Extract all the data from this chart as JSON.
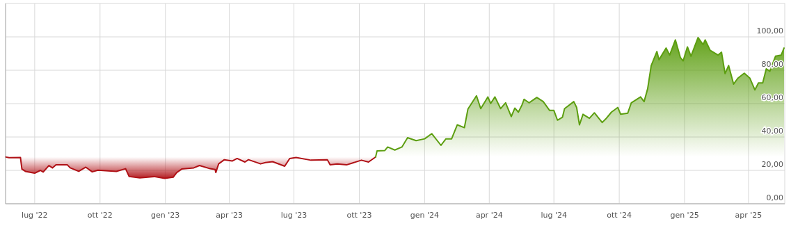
{
  "chart_data": {
    "type": "area",
    "xlim": [
      "2022-05-21",
      "2025-05-22"
    ],
    "ylim": [
      0,
      120
    ],
    "xticks": [
      {
        "value": "2022-07-01",
        "label": "lug '22"
      },
      {
        "value": "2022-10-01",
        "label": "ott '22"
      },
      {
        "value": "2023-01-01",
        "label": "gen '23"
      },
      {
        "value": "2023-04-01",
        "label": "apr '23"
      },
      {
        "value": "2023-07-01",
        "label": "lug '23"
      },
      {
        "value": "2023-10-01",
        "label": "ott '23"
      },
      {
        "value": "2024-01-01",
        "label": "gen '24"
      },
      {
        "value": "2024-04-01",
        "label": "apr '24"
      },
      {
        "value": "2024-07-01",
        "label": "lug '24"
      },
      {
        "value": "2024-10-01",
        "label": "ott '24"
      },
      {
        "value": "2025-01-01",
        "label": "gen '25"
      },
      {
        "value": "2025-04-01",
        "label": "apr '25"
      }
    ],
    "yticks": [
      {
        "value": 0,
        "label": "0,00"
      },
      {
        "value": 20,
        "label": "20,00"
      },
      {
        "value": 40,
        "label": "40,00"
      },
      {
        "value": 60,
        "label": "60,00"
      },
      {
        "value": 80,
        "label": "80,00"
      },
      {
        "value": 100,
        "label": "100,00"
      }
    ],
    "grid": true,
    "series": [
      {
        "type": "line",
        "color": "#b01116",
        "x": [
          "2022-05-21",
          "2022-05-26",
          "2022-06-11",
          "2022-06-13",
          "2022-06-18",
          "2022-07-01",
          "2022-07-09",
          "2022-07-13",
          "2022-07-21",
          "2022-07-26",
          "2022-07-31",
          "2022-08-16",
          "2022-08-20",
          "2022-09-01",
          "2022-09-11",
          "2022-09-20",
          "2022-09-28",
          "2022-10-24",
          "2022-11-06",
          "2022-11-11",
          "2022-11-26",
          "2022-12-16",
          "2022-12-31",
          "2023-01-12",
          "2023-01-17",
          "2023-01-24",
          "2023-02-10",
          "2023-02-18",
          "2023-03-05",
          "2023-03-12",
          "2023-03-13",
          "2023-03-17",
          "2023-03-25",
          "2023-04-05",
          "2023-04-12",
          "2023-04-23",
          "2023-04-28",
          "2023-05-15",
          "2023-05-22",
          "2023-06-01",
          "2023-06-18",
          "2023-06-25",
          "2023-07-04",
          "2023-07-25",
          "2023-08-17",
          "2023-08-21",
          "2023-08-31",
          "2023-09-13",
          "2023-10-04",
          "2023-10-14",
          "2023-10-24"
        ],
        "values": [
          28.0,
          27.6,
          27.7,
          20.8,
          19.4,
          18.3,
          20.0,
          19.0,
          22.9,
          21.5,
          23.3,
          23.3,
          21.5,
          19.4,
          21.9,
          19.1,
          20.1,
          19.4,
          21.0,
          16.3,
          15.5,
          16.3,
          15.2,
          15.9,
          18.7,
          20.8,
          21.5,
          22.9,
          21.0,
          20.5,
          18.7,
          23.9,
          26.4,
          25.6,
          27.1,
          25.0,
          26.4,
          23.9,
          24.7,
          25.2,
          22.5,
          27.1,
          27.7,
          26.1,
          26.4,
          23.3,
          23.9,
          23.3,
          26.1,
          25.0,
          28.0
        ]
      },
      {
        "color": "#5c9e10",
        "x": [
          "2023-10-24",
          "2023-10-26",
          "2023-11-06",
          "2023-11-10",
          "2023-11-20",
          "2023-11-30",
          "2023-12-08",
          "2023-12-20",
          "2024-01-01",
          "2024-01-11",
          "2024-01-24",
          "2024-01-31",
          "2024-02-08",
          "2024-02-16",
          "2024-02-26",
          "2024-03-02",
          "2024-03-14",
          "2024-03-20",
          "2024-03-30",
          "2024-04-03",
          "2024-04-09",
          "2024-04-17",
          "2024-04-24",
          "2024-05-02",
          "2024-05-07",
          "2024-05-12",
          "2024-05-17",
          "2024-05-20",
          "2024-05-27",
          "2024-06-07",
          "2024-06-16",
          "2024-06-25",
          "2024-07-01",
          "2024-07-06",
          "2024-07-13",
          "2024-07-16",
          "2024-07-29",
          "2024-08-02",
          "2024-08-06",
          "2024-08-11",
          "2024-08-20",
          "2024-08-27",
          "2024-09-07",
          "2024-09-12",
          "2024-09-20",
          "2024-09-29",
          "2024-10-03",
          "2024-10-13",
          "2024-10-18",
          "2024-10-31",
          "2024-11-05",
          "2024-11-10",
          "2024-11-15",
          "2024-11-23",
          "2024-11-26",
          "2024-12-06",
          "2024-12-11",
          "2024-12-19",
          "2024-12-26",
          "2024-12-30",
          "2025-01-05",
          "2025-01-10",
          "2025-01-20",
          "2025-01-27",
          "2025-01-30",
          "2025-02-06",
          "2025-02-17",
          "2025-02-22",
          "2025-02-27",
          "2025-03-04",
          "2025-03-11",
          "2025-03-17",
          "2025-03-26",
          "2025-04-03",
          "2025-04-10",
          "2025-04-15",
          "2025-04-21",
          "2025-04-26",
          "2025-05-01",
          "2025-05-09",
          "2025-05-17",
          "2025-05-21"
        ],
        "values": [
          28.0,
          31.7,
          31.9,
          34.0,
          32.2,
          34.0,
          39.6,
          37.8,
          38.9,
          42.0,
          35.0,
          38.9,
          38.9,
          47.3,
          45.6,
          56.8,
          64.7,
          57.0,
          64.0,
          60.1,
          64.0,
          57.0,
          60.5,
          52.2,
          57.3,
          54.9,
          59.1,
          62.6,
          60.5,
          63.7,
          61.2,
          55.9,
          55.9,
          50.1,
          51.8,
          57.0,
          61.2,
          57.7,
          47.3,
          53.6,
          51.2,
          54.5,
          48.7,
          50.8,
          54.9,
          57.7,
          53.6,
          54.3,
          60.5,
          64.0,
          61.2,
          68.9,
          82.8,
          91.2,
          86.3,
          93.3,
          89.1,
          98.2,
          87.7,
          85.6,
          94.0,
          88.4,
          99.6,
          95.4,
          98.2,
          91.9,
          89.1,
          90.8,
          78.0,
          82.8,
          71.7,
          75.2,
          78.2,
          75.2,
          68.2,
          72.4,
          72.4,
          80.8,
          79.4,
          88.4,
          89.1,
          93.3
        ]
      }
    ]
  }
}
